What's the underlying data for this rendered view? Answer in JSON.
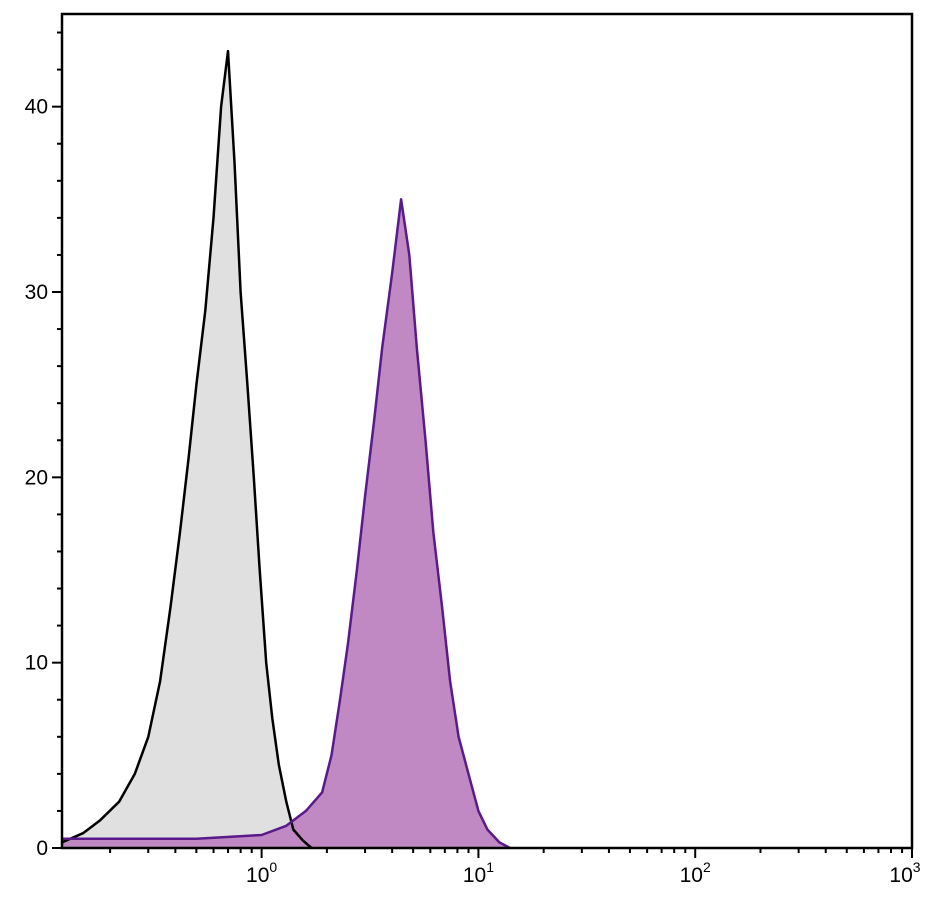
{
  "chart_data": {
    "type": "area",
    "x_scale": "log",
    "xlim": [
      0.12,
      1000
    ],
    "ylim": [
      0,
      45
    ],
    "grid": false,
    "legend": "none",
    "x_ticks": [
      {
        "value": 1,
        "base": "10",
        "exp": "0"
      },
      {
        "value": 10,
        "base": "10",
        "exp": "1"
      },
      {
        "value": 100,
        "base": "10",
        "exp": "2"
      },
      {
        "value": 1000,
        "base": "10",
        "exp": "3"
      }
    ],
    "y_ticks": [
      {
        "value": 0,
        "label": "0"
      },
      {
        "value": 10,
        "label": "10"
      },
      {
        "value": 20,
        "label": "20"
      },
      {
        "value": 30,
        "label": "30"
      },
      {
        "value": 40,
        "label": "40"
      }
    ],
    "series": [
      {
        "fill": "#e0e0e0",
        "stroke": "#000000",
        "x": [
          0.12,
          0.15,
          0.18,
          0.22,
          0.26,
          0.3,
          0.34,
          0.38,
          0.42,
          0.46,
          0.5,
          0.55,
          0.6,
          0.65,
          0.7,
          0.75,
          0.8,
          0.86,
          0.92,
          0.98,
          1.05,
          1.12,
          1.2,
          1.3,
          1.4,
          1.55,
          1.7
        ],
        "y": [
          0.3,
          0.8,
          1.5,
          2.5,
          4.0,
          6.0,
          9.0,
          13.0,
          17.0,
          21.0,
          25.0,
          29.0,
          34.0,
          40.0,
          43.0,
          37.0,
          30.0,
          25.0,
          20.0,
          15.0,
          10.0,
          7.0,
          4.5,
          2.5,
          1.0,
          0.4,
          0.0
        ]
      },
      {
        "fill": "#c089c3",
        "stroke": "#5a1a8a",
        "x": [
          0.12,
          0.5,
          1.0,
          1.3,
          1.6,
          1.9,
          2.1,
          2.3,
          2.5,
          2.75,
          3.0,
          3.3,
          3.6,
          4.0,
          4.4,
          4.8,
          5.2,
          5.7,
          6.2,
          6.8,
          7.4,
          8.1,
          9.0,
          10.0,
          11.0,
          12.5,
          14.0
        ],
        "y": [
          0.5,
          0.5,
          0.7,
          1.2,
          2.0,
          3.0,
          5.0,
          8.0,
          11.0,
          15.0,
          19.0,
          23.0,
          27.0,
          31.0,
          35.0,
          32.0,
          27.0,
          22.0,
          17.0,
          13.0,
          9.0,
          6.0,
          4.0,
          2.0,
          1.0,
          0.3,
          0.0
        ]
      }
    ]
  }
}
